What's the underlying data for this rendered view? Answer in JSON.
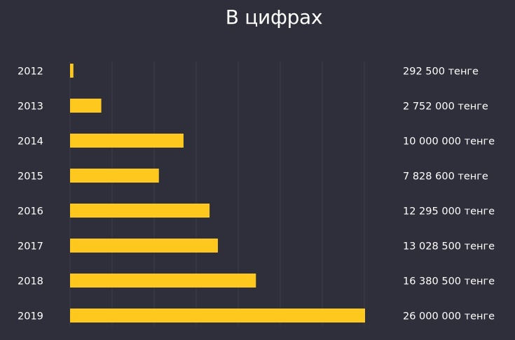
{
  "chart_data": {
    "type": "bar",
    "orientation": "horizontal",
    "title": "В цифрах",
    "categories": [
      "2012",
      "2013",
      "2014",
      "2015",
      "2016",
      "2017",
      "2018",
      "2019"
    ],
    "values": [
      292500,
      2752000,
      10000000,
      7828600,
      12295000,
      13028500,
      16380500,
      26000000
    ],
    "data_labels": [
      "292 500 тенге",
      "2 752 000 тенге",
      "10 000 000 тенге",
      "7 828 600 тенге",
      "12 295 000 тенге",
      "13 028 500 тенге",
      "16 380 500 тенге",
      "26 000 000 тенге"
    ],
    "grid": true,
    "legend": "none",
    "colors": {
      "bar": "#ffc81e",
      "background": "#2f2f3c",
      "text": "#ffffff",
      "grid": "#3d3d4a"
    }
  }
}
